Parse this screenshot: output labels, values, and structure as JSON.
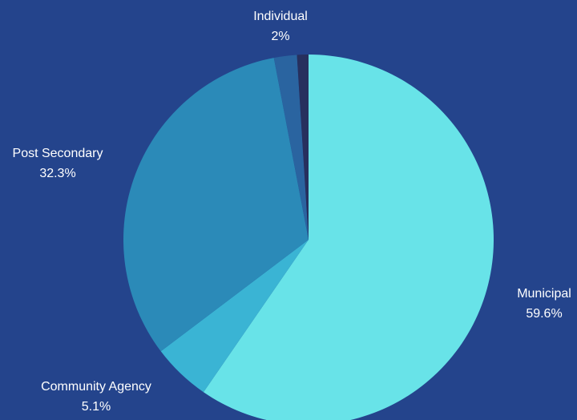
{
  "background_color": "#24448c",
  "chart_data": {
    "type": "pie",
    "title": "",
    "slices": [
      {
        "name": "Municipal",
        "value_label": "59.6%",
        "value": 59.6,
        "color": "#68e3e8"
      },
      {
        "name": "Community Agency",
        "value_label": "5.1%",
        "value": 5.1,
        "color": "#3ab4d4"
      },
      {
        "name": "Post Secondary",
        "value_label": "32.3%",
        "value": 32.3,
        "color": "#2b8ab8"
      },
      {
        "name": "Individual",
        "value_label": "2%",
        "value": 2.0,
        "color": "#2a64a0"
      },
      {
        "name": "",
        "value_label": "",
        "value": 1.0,
        "color": "#27305e"
      }
    ],
    "start_angle_degrees": 0,
    "direction": "clockwise",
    "legend": "none"
  }
}
